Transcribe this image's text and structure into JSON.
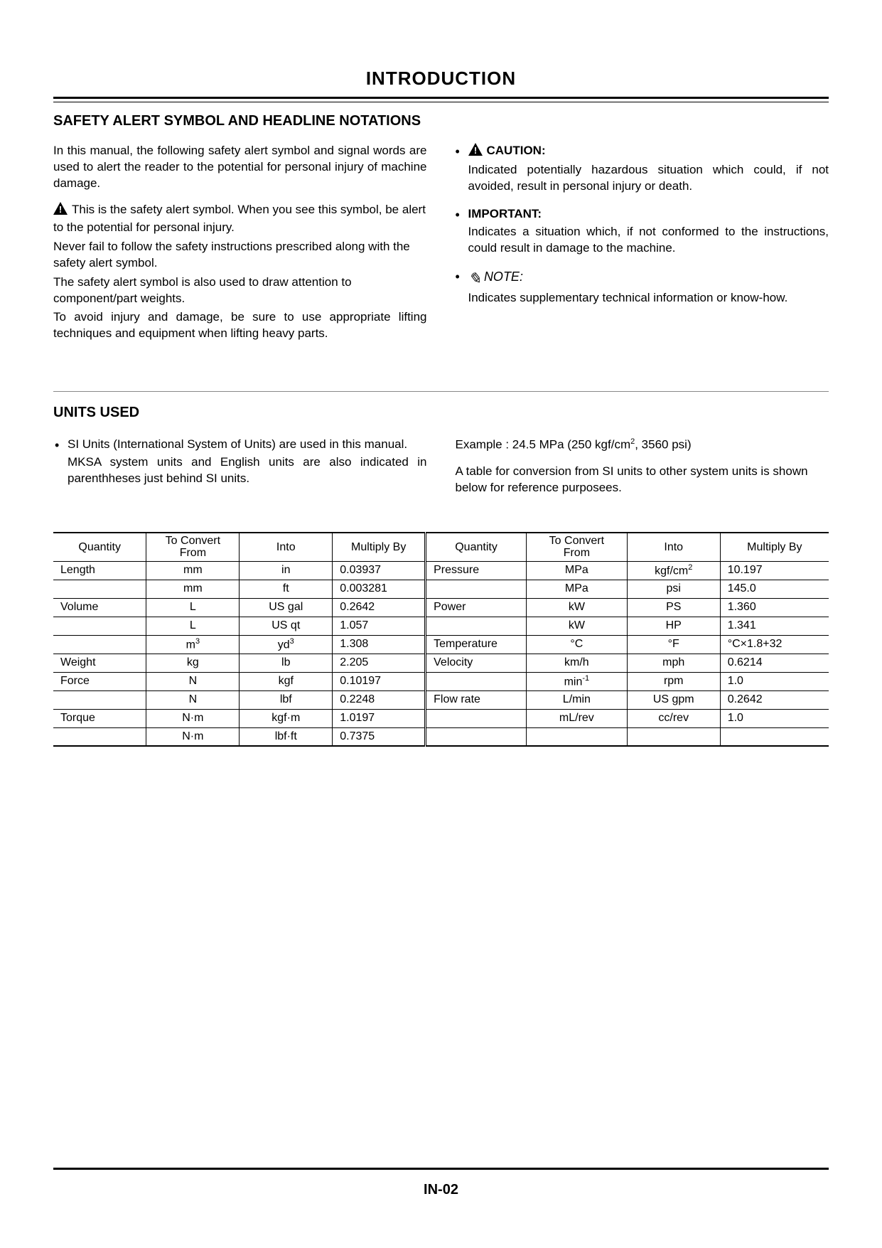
{
  "page": {
    "title": "INTRODUCTION",
    "number": "IN-02"
  },
  "safety": {
    "heading": "SAFETY ALERT SYMBOL AND HEADLINE NOTATIONS",
    "intro": "In this manual, the following safety alert symbol and signal words are used to alert the reader to the potential for personal injury of machine damage.",
    "symbol_p1": "This is the safety alert symbol. When you see this symbol, be alert to the potential for personal injury.",
    "symbol_p2": "Never fail to follow the safety instructions prescribed along with the safety alert symbol.",
    "symbol_p3": "The safety alert symbol is also used to draw attention to component/part weights.",
    "symbol_p4": "To avoid injury and damage, be sure to use appropriate lifting techniques and equipment when lifting heavy parts.",
    "caution_label": "CAUTION:",
    "caution_body": "Indicated potentially hazardous situation which could, if not avoided, result in personal injury or death.",
    "important_label": "IMPORTANT:",
    "important_body": "Indicates a situation which, if not conformed to the instructions, could result in damage to the machine.",
    "note_label": "NOTE:",
    "note_body": "Indicates supplementary technical information or know-how."
  },
  "units": {
    "heading": "UNITS USED",
    "p1": "SI Units (International System of Units) are used in this manual.",
    "p2": "MKSA system units and English units are also indicated in parenthheses just behind SI units.",
    "example_prefix": "Example : 24.5 MPa (250 kgf/cm",
    "example_suffix": ", 3560 psi)",
    "p3": "A table for conversion from SI units to other system units is shown below for reference purposees."
  },
  "table": {
    "headers": {
      "quantity": "Quantity",
      "from": "To Convert From",
      "into": "Into",
      "mult": "Multiply By"
    },
    "rows": [
      {
        "lq": "Length",
        "lf": "mm",
        "li": "in",
        "lm": "0.03937",
        "rq": "Pressure",
        "rf": "MPa",
        "ri_html": "kgf/cm<sup>2</sup>",
        "rm": "10.197"
      },
      {
        "lq": "",
        "lf": "mm",
        "li": "ft",
        "lm": "0.003281",
        "rq": "",
        "rf": "MPa",
        "ri": "psi",
        "rm": "145.0"
      },
      {
        "lq": "Volume",
        "lf": "L",
        "li": "US gal",
        "lm": "0.2642",
        "rq": "Power",
        "rf": "kW",
        "ri": "PS",
        "rm": "1.360"
      },
      {
        "lq": "",
        "lf": "L",
        "li": "US qt",
        "lm": "1.057",
        "rq": "",
        "rf": "kW",
        "ri": "HP",
        "rm": "1.341"
      },
      {
        "lq": "",
        "lf_html": "m<sup>3</sup>",
        "li_html": "yd<sup>3</sup>",
        "lm": "1.308",
        "rq": "Temperature",
        "rf": "°C",
        "ri": "°F",
        "rm": "°C×1.8+32"
      },
      {
        "lq": "Weight",
        "lf": "kg",
        "li": "lb",
        "lm": "2.205",
        "rq": "Velocity",
        "rf": "km/h",
        "ri": "mph",
        "rm": "0.6214"
      },
      {
        "lq": "Force",
        "lf": "N",
        "li": "kgf",
        "lm": "0.10197",
        "rq": "",
        "rf_html": "min<sup>-1</sup>",
        "ri": "rpm",
        "rm": "1.0"
      },
      {
        "lq": "",
        "lf": "N",
        "li": "lbf",
        "lm": "0.2248",
        "rq": "Flow rate",
        "rf": "L/min",
        "ri": "US gpm",
        "rm": "0.2642"
      },
      {
        "lq": "Torque",
        "lf": "N·m",
        "li": "kgf·m",
        "lm": "1.0197",
        "rq": "",
        "rf": "mL/rev",
        "ri": "cc/rev",
        "rm": "1.0"
      },
      {
        "lq": "",
        "lf": "N·m",
        "li": "lbf·ft",
        "lm": "0.7375",
        "rq": "",
        "rf": "",
        "ri": "",
        "rm": ""
      }
    ]
  },
  "style": {
    "text_color": "#000000",
    "bg_color": "#ffffff",
    "body_fontsize": 17,
    "title_fontsize": 26,
    "section_fontsize": 20,
    "table_fontsize": 16
  }
}
